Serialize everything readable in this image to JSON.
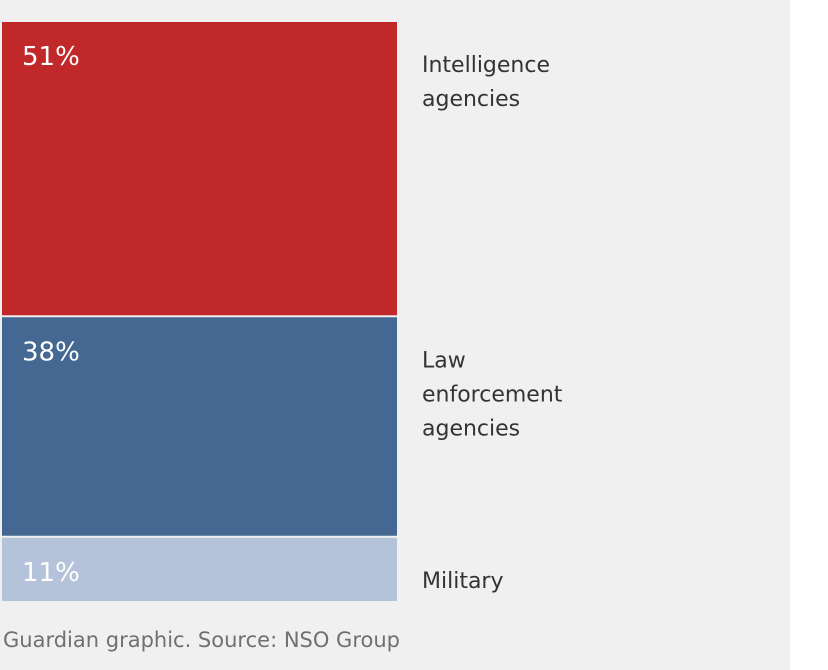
{
  "chart_data": {
    "type": "bar",
    "subtype": "stacked-100-single-column",
    "title": "",
    "xlabel": "",
    "ylabel": "",
    "categories": [
      "Intelligence agencies",
      "Law enforcement agencies",
      "Military"
    ],
    "values": [
      51,
      38,
      11
    ],
    "unit": "%",
    "segments": [
      {
        "name": "Intelligence agencies",
        "label_lines": [
          "Intelligence",
          "agencies"
        ],
        "value": 51,
        "value_label": "51%",
        "color": "#c0282a",
        "text_color": "#ffffff"
      },
      {
        "name": "Law enforcement agencies",
        "label_lines": [
          "Law",
          "enforcement",
          "agencies"
        ],
        "value": 38,
        "value_label": "38%",
        "color": "#446891",
        "text_color": "#ffffff"
      },
      {
        "name": "Military",
        "label_lines": [
          "Military"
        ],
        "value": 11,
        "value_label": "11%",
        "color": "#b5c3da",
        "text_color": "#ffffff"
      }
    ],
    "legend": "right",
    "grid": false
  },
  "source": "Guardian graphic. Source: NSO Group",
  "colors": {
    "background": "#f0f0f0",
    "label_text": "#333333",
    "source_text": "#707070"
  }
}
